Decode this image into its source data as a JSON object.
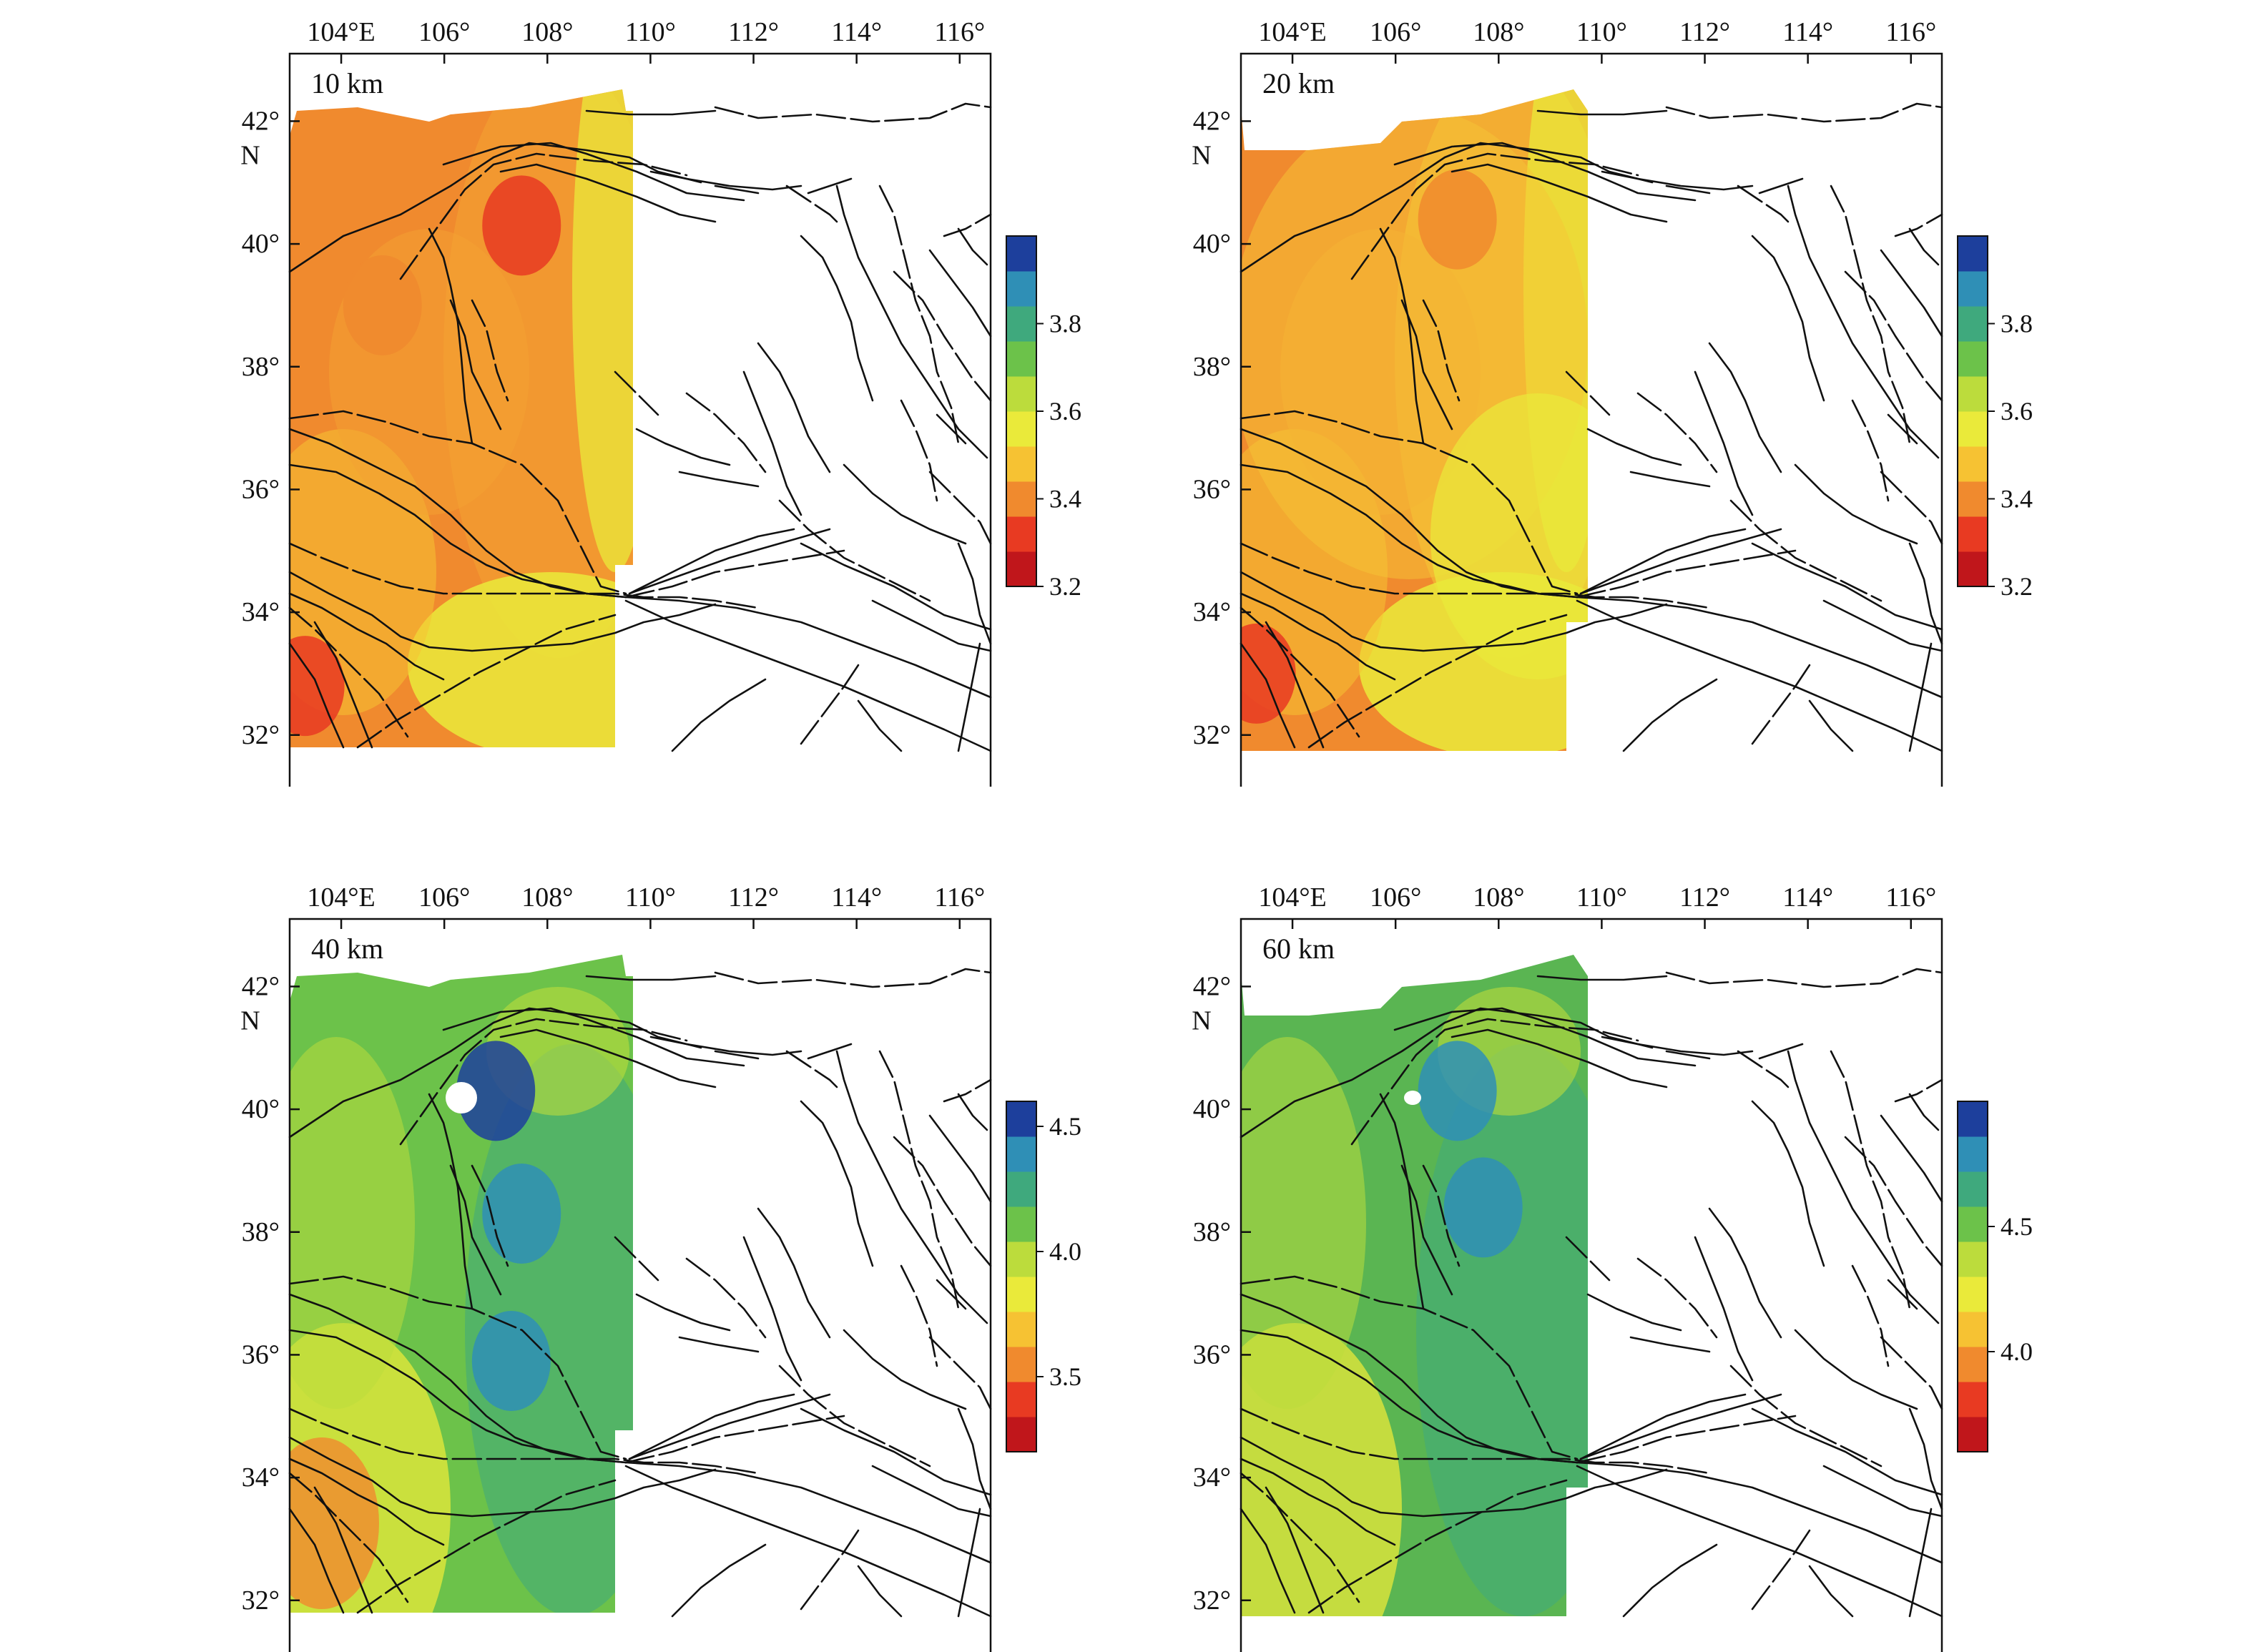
{
  "figure": {
    "longitude_labels": [
      "104°E",
      "106°",
      "108°",
      "110°",
      "112°",
      "114°",
      "116°"
    ],
    "latitude_labels": [
      "42°",
      "40°",
      "38°",
      "36°",
      "34°",
      "32°"
    ],
    "north_label": "N",
    "colors": {
      "scale": [
        "#c0161b",
        "#e83a22",
        "#f08a2e",
        "#f6c233",
        "#eaea3a",
        "#bcdc3c",
        "#6cc24a",
        "#3fa97d",
        "#2f8fb6",
        "#1d3f9c"
      ]
    },
    "fault_line_color": "#111111"
  },
  "panels": [
    {
      "depth_label": "10 km",
      "colorbar": {
        "ticks": [
          "3.8",
          "3.6",
          "3.4",
          "3.2"
        ],
        "min": 3.2,
        "max": 4.0
      },
      "anomalies": [
        {
          "name": "ordos-north-low",
          "value": 3.3,
          "lon": 107.5,
          "lat": 40.3
        },
        {
          "name": "west-low-1",
          "value": 3.4,
          "lon": 104.8,
          "lat": 39.0
        },
        {
          "name": "south-west-low",
          "value": 3.3,
          "lon": 103.3,
          "lat": 32.8
        }
      ]
    },
    {
      "depth_label": "20 km",
      "colorbar": {
        "ticks": [
          "3.8",
          "3.6",
          "3.4",
          "3.2"
        ],
        "min": 3.2,
        "max": 4.0
      },
      "anomalies": [
        {
          "name": "ordos-north-low",
          "value": 3.4,
          "lon": 107.2,
          "lat": 40.4
        },
        {
          "name": "south-west-low",
          "value": 3.3,
          "lon": 103.3,
          "lat": 33.0
        }
      ]
    },
    {
      "depth_label": "40 km",
      "colorbar": {
        "ticks": [
          "4.5",
          "4.0",
          "3.5"
        ],
        "min": 3.2,
        "max": 4.6
      },
      "anomalies": [
        {
          "name": "north-high",
          "value": 4.6,
          "lon": 107.0,
          "lat": 40.3
        },
        {
          "name": "mid-high",
          "value": 4.5,
          "lon": 107.5,
          "lat": 38.3
        },
        {
          "name": "south-high",
          "value": 4.5,
          "lon": 107.3,
          "lat": 35.9
        }
      ]
    },
    {
      "depth_label": "60 km",
      "colorbar": {
        "ticks": [
          "4.5",
          "4.0"
        ],
        "min": 3.6,
        "max": 5.0
      },
      "anomalies": [
        {
          "name": "north-high",
          "value": 4.9,
          "lon": 107.2,
          "lat": 40.3
        },
        {
          "name": "mid-high",
          "value": 4.8,
          "lon": 107.7,
          "lat": 38.4
        }
      ]
    }
  ]
}
